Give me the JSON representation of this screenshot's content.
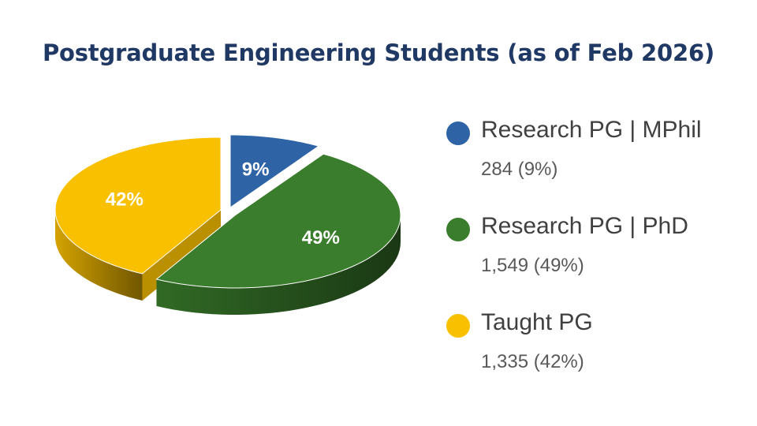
{
  "chart_data": {
    "type": "pie",
    "title": "Postgraduate Engineering Students (as of Feb 2026)",
    "slices": [
      {
        "label": "Research PG | MPhil",
        "value": 284,
        "percent": 9,
        "percent_label": "9%",
        "value_label": "284 (9%)",
        "color": "#2e64a6"
      },
      {
        "label": "Research PG | PhD",
        "value": 1549,
        "percent": 49,
        "percent_label": "49%",
        "value_label": "1,549 (49%)",
        "color": "#3a7d2c"
      },
      {
        "label": "Taught PG",
        "value": 1335,
        "percent": 42,
        "percent_label": "42%",
        "value_label": "1,335 (42%)",
        "color": "#f9c000"
      }
    ],
    "legend_position": "right",
    "style": "3d-exploded"
  }
}
